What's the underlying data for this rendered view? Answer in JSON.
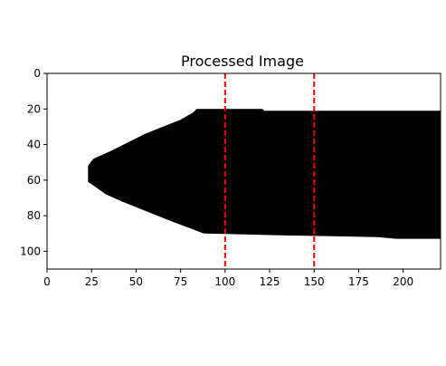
{
  "chart_data": {
    "type": "image",
    "title": "Processed Image",
    "xlabel": "",
    "ylabel": "",
    "xlim": [
      0,
      221
    ],
    "ylim": [
      110,
      0
    ],
    "x_ticks": [
      0,
      25,
      50,
      75,
      100,
      125,
      150,
      175,
      200
    ],
    "y_ticks": [
      0,
      20,
      40,
      60,
      80,
      100
    ],
    "image": {
      "description": "binary mask: black rounded-arrow shape on white background",
      "foreground_color": "#000000",
      "background_color": "#ffffff",
      "shape_outline": [
        [
          23,
          52
        ],
        [
          26,
          48
        ],
        [
          35,
          44
        ],
        [
          45,
          39
        ],
        [
          55,
          34
        ],
        [
          65,
          30
        ],
        [
          75,
          26
        ],
        [
          82,
          22
        ],
        [
          84,
          20
        ],
        [
          121,
          20
        ],
        [
          122,
          21
        ],
        [
          221,
          21
        ],
        [
          221,
          93
        ],
        [
          196,
          93
        ],
        [
          186,
          92
        ],
        [
          131,
          91
        ],
        [
          88,
          90
        ],
        [
          80,
          87
        ],
        [
          72,
          84
        ],
        [
          62,
          80
        ],
        [
          52,
          76
        ],
        [
          42,
          72
        ],
        [
          33,
          68
        ],
        [
          26,
          63
        ],
        [
          23,
          61
        ]
      ]
    },
    "vertical_lines": [
      {
        "x": 100,
        "color": "#ff0000",
        "style": "dashed"
      },
      {
        "x": 150,
        "color": "#ff0000",
        "style": "dashed"
      }
    ],
    "grid": false,
    "legend": "none"
  }
}
